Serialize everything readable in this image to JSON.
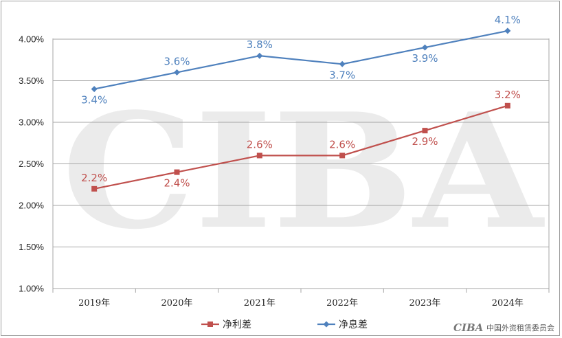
{
  "chart_data": {
    "type": "line",
    "title": "",
    "xlabel": "",
    "ylabel": "",
    "categories": [
      "2019年",
      "2020年",
      "2021年",
      "2022年",
      "2023年",
      "2024年"
    ],
    "ylim": [
      1.0,
      4.0
    ],
    "yticks": [
      "1.00%",
      "1.50%",
      "2.00%",
      "2.50%",
      "3.00%",
      "3.50%",
      "4.00%"
    ],
    "grid": true,
    "legend_position": "bottom",
    "series": [
      {
        "name": "净利差",
        "values": [
          2.2,
          2.4,
          2.6,
          2.6,
          2.9,
          3.2
        ],
        "labels": [
          "2.2%",
          "2.4%",
          "2.6%",
          "2.6%",
          "2.9%",
          "3.2%"
        ],
        "color": "#c0504d",
        "marker": "square"
      },
      {
        "name": "净息差",
        "values": [
          3.4,
          3.6,
          3.8,
          3.7,
          3.9,
          4.1
        ],
        "labels": [
          "3.4%",
          "3.6%",
          "3.8%",
          "3.7%",
          "3.9%",
          "4.1%"
        ],
        "color": "#4f81bd",
        "marker": "diamond"
      }
    ]
  },
  "watermark": "CIBA",
  "footer": {
    "logo": "CIBA",
    "org": "中国外资租赁委员会"
  }
}
